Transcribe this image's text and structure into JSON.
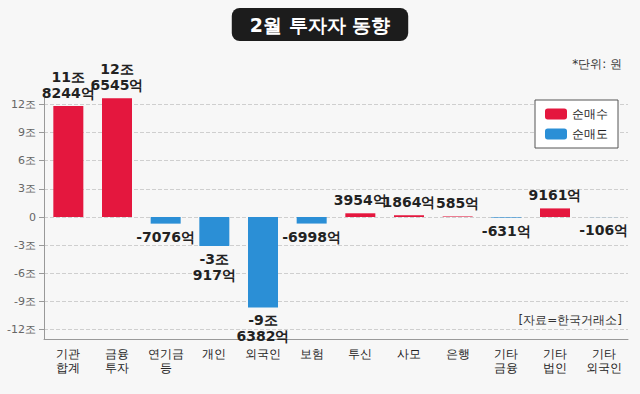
{
  "chart_data": {
    "type": "bar",
    "title": "2월 투자자 동향",
    "annotations": [
      "*단위: 원",
      "[자료=한국거래소]"
    ],
    "categories": [
      "기관\n합계",
      "금융\n투자",
      "연기금\n등",
      "개인",
      "외국인",
      "보험",
      "투신",
      "사모",
      "은행",
      "기타\n금융",
      "기타\n법인",
      "기타\n외국인"
    ],
    "series": [
      {
        "name": "순매수",
        "color": "#e4173e",
        "values": [
          11.8244,
          12.6545,
          null,
          null,
          null,
          null,
          0.3954,
          0.1864,
          0.0585,
          null,
          0.9161,
          null
        ],
        "value_labels": [
          "11조\n8244억",
          "12조\n6545억",
          null,
          null,
          null,
          null,
          "3954억",
          "1864억",
          "585억",
          null,
          "9161억",
          null
        ]
      },
      {
        "name": "순매도",
        "color": "#2b8fd6",
        "values": [
          null,
          null,
          -0.7076,
          -3.0917,
          -9.6382,
          -0.6998,
          null,
          null,
          null,
          -0.0631,
          null,
          -0.0106
        ],
        "value_labels": [
          null,
          null,
          "-7076억",
          "-3조\n917억",
          "-9조\n6382억",
          "-6998억",
          null,
          null,
          null,
          "-631억",
          null,
          "-106억"
        ]
      }
    ],
    "ylim": [
      -13,
      13
    ],
    "yticks": [
      {
        "value": -12,
        "label": "-12조"
      },
      {
        "value": -9,
        "label": "-9조"
      },
      {
        "value": -6,
        "label": "-6조"
      },
      {
        "value": -3,
        "label": "-3조"
      },
      0,
      {
        "value": 3,
        "label": "3조"
      },
      {
        "value": 6,
        "label": "6조"
      },
      {
        "value": 9,
        "label": "9조"
      },
      {
        "value": 12,
        "label": "12조"
      }
    ],
    "grid": true,
    "legend": "upper right",
    "data_labels": true
  }
}
